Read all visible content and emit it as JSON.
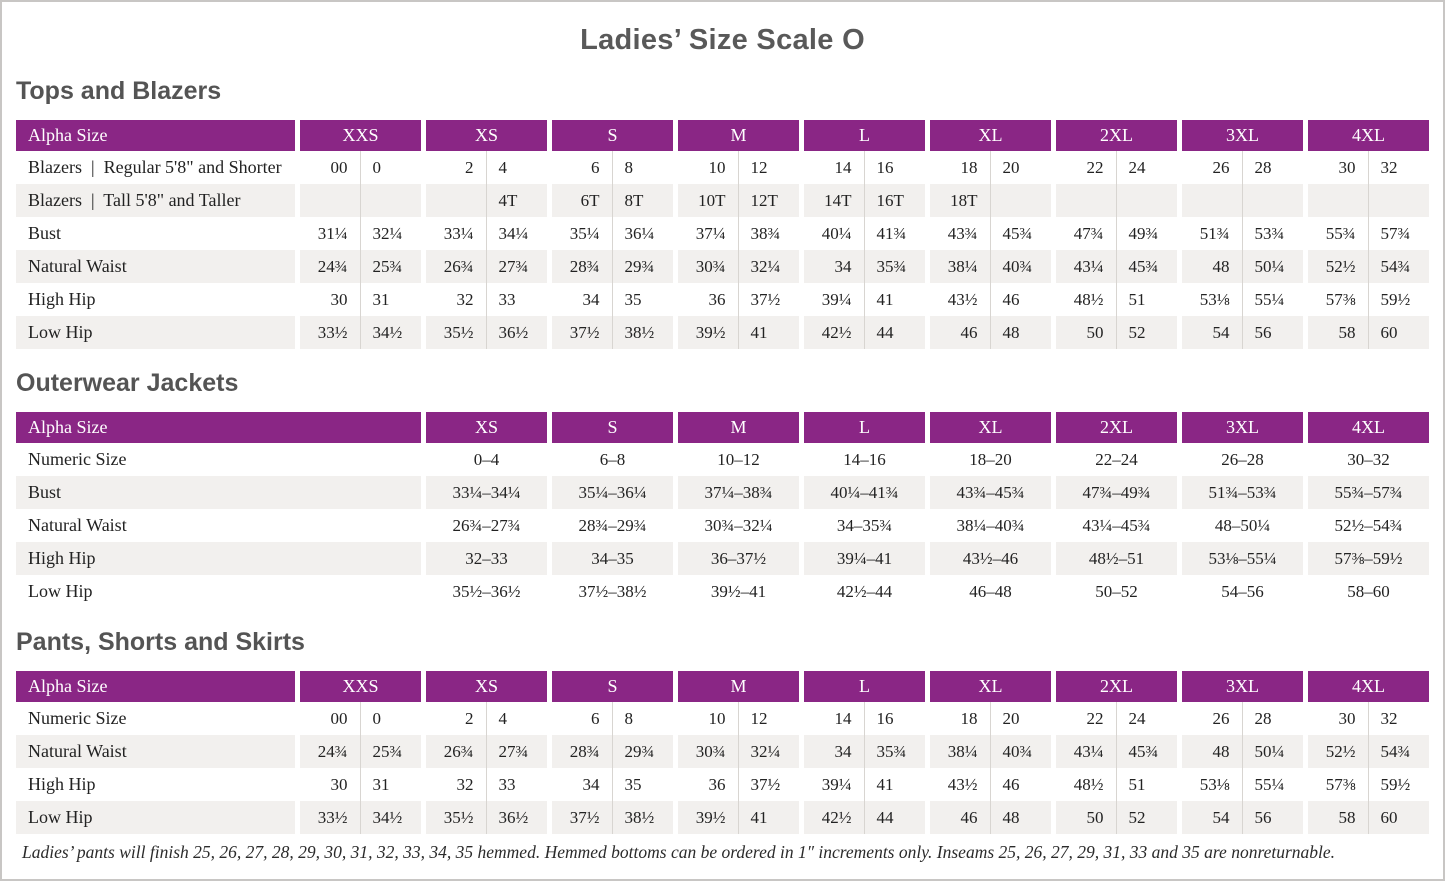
{
  "page": {
    "title": "Ladies’ Size Scale O"
  },
  "colors": {
    "header_purple": "#8A2685",
    "header_text": "#FFFFFF",
    "row_alt": "#F2F0EE",
    "divider": "#D8D5D1",
    "heading_gray": "#545454",
    "title_gray": "#595959",
    "text": "#222222",
    "page_border": "#C8C6C4"
  },
  "sections": [
    {
      "heading": "Tops and Blazers",
      "type": "paired",
      "label_header": "Alpha Size",
      "size_headers": [
        "XXS",
        "XS",
        "S",
        "M",
        "L",
        "XL",
        "2XL",
        "3XL",
        "4XL"
      ],
      "rows": [
        {
          "label": "Blazers  |  Regular 5'8\" and Shorter",
          "cells": [
            [
              "00",
              "0"
            ],
            [
              "2",
              "4"
            ],
            [
              "6",
              "8"
            ],
            [
              "10",
              "12"
            ],
            [
              "14",
              "16"
            ],
            [
              "18",
              "20"
            ],
            [
              "22",
              "24"
            ],
            [
              "26",
              "28"
            ],
            [
              "30",
              "32"
            ]
          ]
        },
        {
          "label": "Blazers  |  Tall 5'8\" and Taller",
          "cells": [
            [
              "",
              ""
            ],
            [
              "",
              "4T"
            ],
            [
              "6T",
              "8T"
            ],
            [
              "10T",
              "12T"
            ],
            [
              "14T",
              "16T"
            ],
            [
              "18T",
              ""
            ],
            [
              "",
              ""
            ],
            [
              "",
              ""
            ],
            [
              "",
              ""
            ]
          ]
        },
        {
          "label": "Bust",
          "cells": [
            [
              "31¼",
              "32¼"
            ],
            [
              "33¼",
              "34¼"
            ],
            [
              "35¼",
              "36¼"
            ],
            [
              "37¼",
              "38¾"
            ],
            [
              "40¼",
              "41¾"
            ],
            [
              "43¾",
              "45¾"
            ],
            [
              "47¾",
              "49¾"
            ],
            [
              "51¾",
              "53¾"
            ],
            [
              "55¾",
              "57¾"
            ]
          ]
        },
        {
          "label": "Natural Waist",
          "cells": [
            [
              "24¾",
              "25¾"
            ],
            [
              "26¾",
              "27¾"
            ],
            [
              "28¾",
              "29¾"
            ],
            [
              "30¾",
              "32¼"
            ],
            [
              "34",
              "35¾"
            ],
            [
              "38¼",
              "40¾"
            ],
            [
              "43¼",
              "45¾"
            ],
            [
              "48",
              "50¼"
            ],
            [
              "52½",
              "54¾"
            ]
          ]
        },
        {
          "label": "High Hip",
          "cells": [
            [
              "30",
              "31"
            ],
            [
              "32",
              "33"
            ],
            [
              "34",
              "35"
            ],
            [
              "36",
              "37½"
            ],
            [
              "39¼",
              "41"
            ],
            [
              "43½",
              "46"
            ],
            [
              "48½",
              "51"
            ],
            [
              "53⅛",
              "55¼"
            ],
            [
              "57⅜",
              "59½"
            ]
          ]
        },
        {
          "label": "Low Hip",
          "cells": [
            [
              "33½",
              "34½"
            ],
            [
              "35½",
              "36½"
            ],
            [
              "37½",
              "38½"
            ],
            [
              "39½",
              "41"
            ],
            [
              "42½",
              "44"
            ],
            [
              "46",
              "48"
            ],
            [
              "50",
              "52"
            ],
            [
              "54",
              "56"
            ],
            [
              "58",
              "60"
            ]
          ]
        }
      ]
    },
    {
      "heading": "Outerwear Jackets",
      "type": "range",
      "label_header": "Alpha Size",
      "size_headers": [
        "XS",
        "S",
        "M",
        "L",
        "XL",
        "2XL",
        "3XL",
        "4XL"
      ],
      "rows": [
        {
          "label": "Numeric Size",
          "cells": [
            "0–4",
            "6–8",
            "10–12",
            "14–16",
            "18–20",
            "22–24",
            "26–28",
            "30–32"
          ]
        },
        {
          "label": "Bust",
          "cells": [
            "33¼–34¼",
            "35¼–36¼",
            "37¼–38¾",
            "40¼–41¾",
            "43¾–45¾",
            "47¾–49¾",
            "51¾–53¾",
            "55¾–57¾"
          ]
        },
        {
          "label": "Natural Waist",
          "cells": [
            "26¾–27¾",
            "28¾–29¾",
            "30¾–32¼",
            "34–35¾",
            "38¼–40¾",
            "43¼–45¾",
            "48–50¼",
            "52½–54¾"
          ]
        },
        {
          "label": "High Hip",
          "cells": [
            "32–33",
            "34–35",
            "36–37½",
            "39¼–41",
            "43½–46",
            "48½–51",
            "53⅛–55¼",
            "57⅜–59½"
          ]
        },
        {
          "label": "Low Hip",
          "cells": [
            "35½–36½",
            "37½–38½",
            "39½–41",
            "42½–44",
            "46–48",
            "50–52",
            "54–56",
            "58–60"
          ]
        }
      ]
    },
    {
      "heading": "Pants, Shorts and Skirts",
      "type": "paired",
      "label_header": "Alpha Size",
      "size_headers": [
        "XXS",
        "XS",
        "S",
        "M",
        "L",
        "XL",
        "2XL",
        "3XL",
        "4XL"
      ],
      "rows": [
        {
          "label": "Numeric Size",
          "cells": [
            [
              "00",
              "0"
            ],
            [
              "2",
              "4"
            ],
            [
              "6",
              "8"
            ],
            [
              "10",
              "12"
            ],
            [
              "14",
              "16"
            ],
            [
              "18",
              "20"
            ],
            [
              "22",
              "24"
            ],
            [
              "26",
              "28"
            ],
            [
              "30",
              "32"
            ]
          ]
        },
        {
          "label": "Natural Waist",
          "cells": [
            [
              "24¾",
              "25¾"
            ],
            [
              "26¾",
              "27¾"
            ],
            [
              "28¾",
              "29¾"
            ],
            [
              "30¾",
              "32¼"
            ],
            [
              "34",
              "35¾"
            ],
            [
              "38¼",
              "40¾"
            ],
            [
              "43¼",
              "45¾"
            ],
            [
              "48",
              "50¼"
            ],
            [
              "52½",
              "54¾"
            ]
          ]
        },
        {
          "label": "High Hip",
          "cells": [
            [
              "30",
              "31"
            ],
            [
              "32",
              "33"
            ],
            [
              "34",
              "35"
            ],
            [
              "36",
              "37½"
            ],
            [
              "39¼",
              "41"
            ],
            [
              "43½",
              "46"
            ],
            [
              "48½",
              "51"
            ],
            [
              "53⅛",
              "55¼"
            ],
            [
              "57⅜",
              "59½"
            ]
          ]
        },
        {
          "label": "Low Hip",
          "cells": [
            [
              "33½",
              "34½"
            ],
            [
              "35½",
              "36½"
            ],
            [
              "37½",
              "38½"
            ],
            [
              "39½",
              "41"
            ],
            [
              "42½",
              "44"
            ],
            [
              "46",
              "48"
            ],
            [
              "50",
              "52"
            ],
            [
              "54",
              "56"
            ],
            [
              "58",
              "60"
            ]
          ]
        }
      ],
      "footnote": "Ladies’ pants will finish 25, 26, 27, 28, 29, 30, 31, 32, 33, 34, 35 hemmed. Hemmed bottoms can be ordered in 1″ increments only. Inseams 25, 26, 27, 29, 31, 33 and 35 are nonreturnable."
    }
  ]
}
